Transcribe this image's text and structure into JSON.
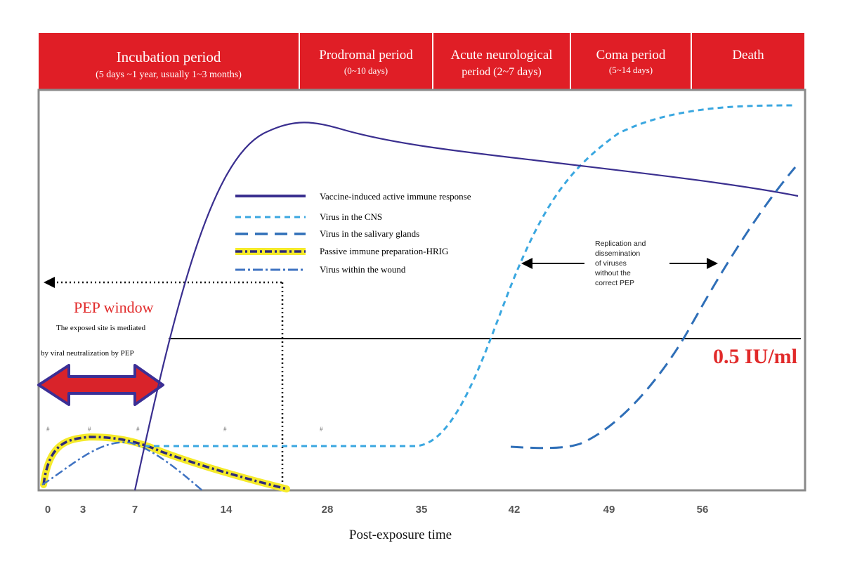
{
  "periods": [
    {
      "title": "Incubation period",
      "subtitle": "(5 days ~1 year, usually 1~3 months)"
    },
    {
      "title": "Prodromal period",
      "subtitle": "(0~10 days)"
    },
    {
      "title": "Acute neurological",
      "subtitle": "period (2~7 days)"
    },
    {
      "title": "Coma period",
      "subtitle": "(5~14 days)"
    },
    {
      "title": "Death",
      "subtitle": ""
    }
  ],
  "legend": [
    {
      "label": "Vaccine-induced active immune response",
      "style": "solid",
      "color": "#3a2f8f"
    },
    {
      "label": "Virus in the CNS",
      "style": "short-dash",
      "color": "#3aa7e0"
    },
    {
      "label": "Virus in the salivary glands",
      "style": "long-dash",
      "color": "#2f6fb8"
    },
    {
      "label": "Passive immune preparation-HRIG",
      "style": "dash-dot-highlight",
      "color": "#2d2a7a",
      "highlight": "#f5ea2a"
    },
    {
      "label": "Virus within the wound",
      "style": "dash-dot",
      "color": "#3f73c2"
    }
  ],
  "annotations": {
    "pep_window": "PEP window",
    "exposed_site_line1": "The exposed site is mediated",
    "exposed_site_line2": "by viral neutralization  by PEP",
    "threshold": "0.5 IU/ml",
    "replication_lines": [
      "Replication and",
      "dissemination",
      "of viruses",
      "without the",
      "correct PEP"
    ],
    "marker": "#"
  },
  "axis": {
    "xlabel": "Post-exposure  time",
    "ticks": [
      "0",
      "3",
      "7",
      "14",
      "28",
      "35",
      "42",
      "49",
      "56"
    ]
  },
  "colors": {
    "header_red": "#e01e26",
    "pep_red": "#e12a2a",
    "arrow_fill": "#d9232a",
    "arrow_outline": "#3b2f95"
  }
}
